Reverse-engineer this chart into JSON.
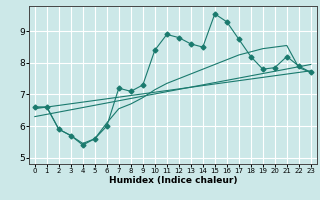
{
  "xlabel": "Humidex (Indice chaleur)",
  "bg_color": "#cce8e8",
  "grid_color": "#ffffff",
  "line_color": "#1a7a6e",
  "xlim": [
    -0.5,
    23.5
  ],
  "ylim": [
    4.8,
    9.8
  ],
  "xticks": [
    0,
    1,
    2,
    3,
    4,
    5,
    6,
    7,
    8,
    9,
    10,
    11,
    12,
    13,
    14,
    15,
    16,
    17,
    18,
    19,
    20,
    21,
    22,
    23
  ],
  "yticks": [
    5,
    6,
    7,
    8,
    9
  ],
  "series1_x": [
    0,
    1,
    2,
    3,
    4,
    5,
    6,
    7,
    8,
    9,
    10,
    11,
    12,
    13,
    14,
    15,
    16,
    17,
    18,
    19,
    20,
    21,
    22,
    23
  ],
  "series1_y": [
    6.6,
    6.6,
    5.9,
    5.7,
    5.4,
    5.6,
    6.0,
    7.2,
    7.1,
    7.3,
    8.4,
    8.9,
    8.8,
    8.6,
    8.5,
    9.55,
    9.3,
    8.75,
    8.2,
    7.8,
    7.85,
    8.2,
    7.9,
    7.7
  ],
  "series2_x": [
    0,
    1,
    2,
    3,
    4,
    5,
    6,
    7,
    8,
    9,
    10,
    11,
    12,
    13,
    14,
    15,
    16,
    17,
    18,
    19,
    20,
    21,
    22,
    23
  ],
  "series2_y": [
    6.6,
    6.6,
    5.9,
    5.7,
    5.45,
    5.6,
    6.1,
    6.55,
    6.7,
    6.9,
    7.15,
    7.35,
    7.5,
    7.65,
    7.8,
    7.95,
    8.1,
    8.25,
    8.35,
    8.45,
    8.5,
    8.55,
    7.85,
    7.7
  ],
  "line2_x": [
    0,
    23
  ],
  "line2_y": [
    6.55,
    7.75
  ],
  "line3_x": [
    0,
    23
  ],
  "line3_y": [
    6.3,
    7.95
  ]
}
